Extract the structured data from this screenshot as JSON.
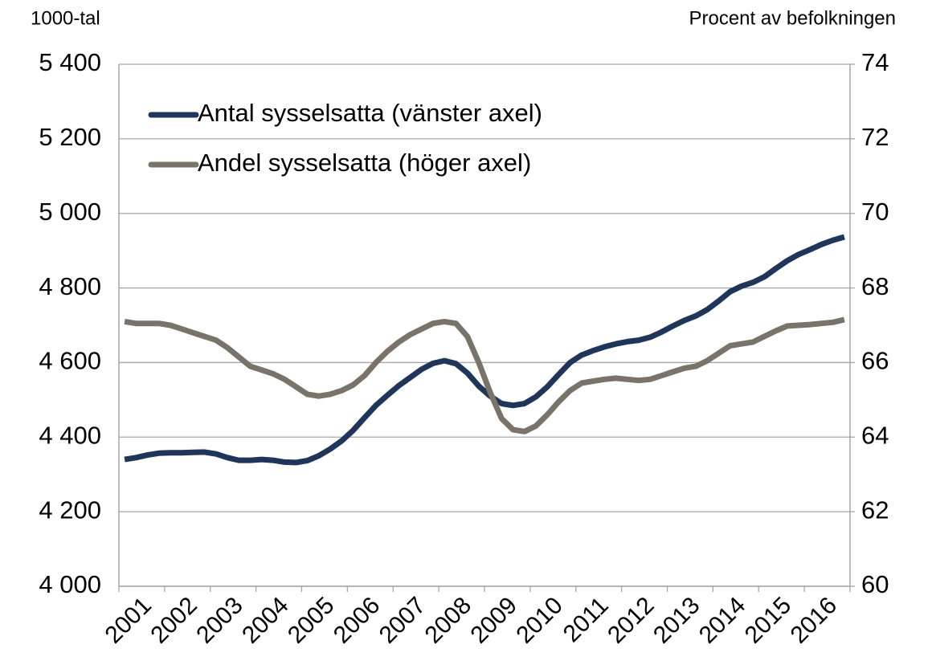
{
  "chart_data": {
    "type": "line",
    "y_label": "1000-tal",
    "y2_label": "Procent av befolkningen",
    "categories": [
      "2001",
      null,
      null,
      null,
      "2002",
      null,
      null,
      null,
      "2003",
      null,
      null,
      null,
      "2004",
      null,
      null,
      null,
      "2005",
      null,
      null,
      null,
      "2006",
      null,
      null,
      null,
      "2007",
      null,
      null,
      null,
      "2008",
      null,
      null,
      null,
      "2009",
      null,
      null,
      null,
      "2010",
      null,
      null,
      null,
      "2011",
      null,
      null,
      null,
      "2012",
      null,
      null,
      null,
      "2013",
      null,
      null,
      null,
      "2014",
      null,
      null,
      null,
      "2015",
      null,
      null,
      null,
      "2016",
      null,
      null,
      null
    ],
    "series": [
      {
        "name": "Antal sysselsatta (vänster axel)",
        "color": "#1f3559",
        "axis": "y",
        "values": [
          4340,
          4345,
          4352,
          4357,
          4358,
          4358,
          4359,
          4360,
          4355,
          4345,
          4338,
          4338,
          4340,
          4338,
          4333,
          4332,
          4337,
          4350,
          4368,
          4390,
          4418,
          4452,
          4485,
          4512,
          4538,
          4560,
          4582,
          4598,
          4605,
          4597,
          4572,
          4537,
          4510,
          4490,
          4485,
          4490,
          4508,
          4535,
          4568,
          4600,
          4620,
          4632,
          4642,
          4650,
          4656,
          4660,
          4668,
          4682,
          4698,
          4713,
          4725,
          4742,
          4765,
          4790,
          4805,
          4815,
          4830,
          4852,
          4873,
          4890,
          4903,
          4917,
          4928,
          4937
        ]
      },
      {
        "name": "Andel sysselsatta (höger axel)",
        "color": "#7a7369",
        "axis": "y2",
        "values": [
          67.1,
          67.05,
          67.05,
          67.05,
          67.0,
          66.9,
          66.8,
          66.7,
          66.6,
          66.4,
          66.15,
          65.9,
          65.8,
          65.7,
          65.55,
          65.35,
          65.15,
          65.1,
          65.15,
          65.25,
          65.4,
          65.65,
          66.0,
          66.3,
          66.55,
          66.75,
          66.9,
          67.05,
          67.1,
          67.05,
          66.7,
          66.0,
          65.2,
          64.5,
          64.2,
          64.15,
          64.3,
          64.6,
          64.95,
          65.25,
          65.45,
          65.5,
          65.55,
          65.58,
          65.55,
          65.52,
          65.55,
          65.65,
          65.75,
          65.85,
          65.9,
          66.05,
          66.25,
          66.45,
          66.5,
          66.55,
          66.7,
          66.85,
          66.98,
          67.0,
          67.02,
          67.05,
          67.08,
          67.15
        ]
      }
    ],
    "ylim": [
      4000,
      5400
    ],
    "yticks": [
      {
        "value": 4000,
        "label": "4 000"
      },
      {
        "value": 4200,
        "label": "4 200"
      },
      {
        "value": 4400,
        "label": "4 400"
      },
      {
        "value": 4600,
        "label": "4 600"
      },
      {
        "value": 4800,
        "label": "4 800"
      },
      {
        "value": 5000,
        "label": "5 000"
      },
      {
        "value": 5200,
        "label": "5 200"
      },
      {
        "value": 5400,
        "label": "5 400"
      }
    ],
    "y2lim": [
      60,
      74
    ],
    "y2ticks": [
      60,
      62,
      64,
      66,
      68,
      70,
      72,
      74
    ],
    "grid": true,
    "legend": "upper left"
  }
}
